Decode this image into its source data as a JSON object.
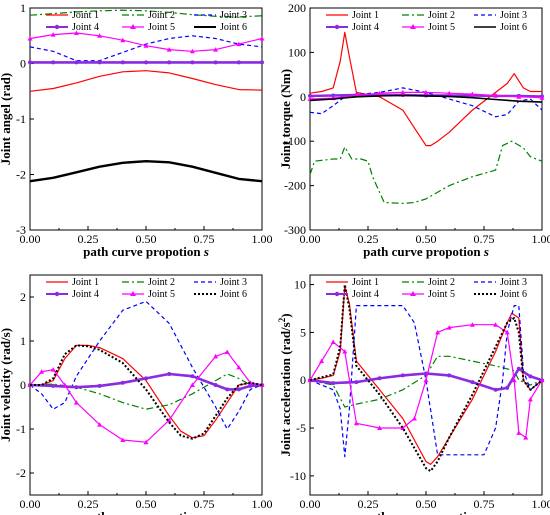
{
  "chart_data": [
    {
      "type": "line",
      "xlabel": "path curve propotion",
      "xlabel_italic": "s",
      "ylabel": "Joint angel (rad)",
      "xlim": [
        0,
        1
      ],
      "ylim": [
        -3,
        1
      ],
      "xticks": [
        "0.00",
        "0.25",
        "0.50",
        "0.75",
        "1.00"
      ],
      "yticks": [
        "-3",
        "-2",
        "-1",
        "0",
        "1"
      ],
      "legend": "top",
      "series": [
        {
          "name": "Joint 1",
          "color": "#ff0000",
          "dash": "",
          "marker": "",
          "width": 1.2,
          "x": [
            0,
            0.1,
            0.2,
            0.3,
            0.4,
            0.5,
            0.6,
            0.7,
            0.8,
            0.9,
            1.0
          ],
          "y": [
            -0.5,
            -0.45,
            -0.35,
            -0.23,
            -0.15,
            -0.13,
            -0.17,
            -0.27,
            -0.38,
            -0.47,
            -0.48
          ]
        },
        {
          "name": "Joint 2",
          "color": "#008000",
          "dash": "7,3,2,3",
          "marker": "",
          "width": 1.2,
          "x": [
            0,
            0.1,
            0.2,
            0.3,
            0.4,
            0.5,
            0.6,
            0.7,
            0.8,
            0.9,
            1.0
          ],
          "y": [
            0.87,
            0.9,
            0.93,
            0.95,
            0.96,
            0.95,
            0.92,
            0.88,
            0.85,
            0.84,
            0.86
          ]
        },
        {
          "name": "Joint 3",
          "color": "#0000ff",
          "dash": "4,3",
          "marker": "",
          "width": 1.2,
          "x": [
            0,
            0.1,
            0.2,
            0.3,
            0.4,
            0.5,
            0.6,
            0.7,
            0.8,
            0.9,
            1.0
          ],
          "y": [
            0.3,
            0.22,
            0.05,
            0.05,
            0.2,
            0.35,
            0.45,
            0.5,
            0.45,
            0.35,
            0.3
          ]
        },
        {
          "name": "Joint 4",
          "color": "#8a2be2",
          "dash": "",
          "marker": "dot",
          "width": 2.6,
          "x": [
            0,
            0.1,
            0.2,
            0.3,
            0.4,
            0.5,
            0.6,
            0.7,
            0.8,
            0.9,
            1.0
          ],
          "y": [
            0.02,
            0.02,
            0.02,
            0.02,
            0.02,
            0.02,
            0.02,
            0.02,
            0.02,
            0.02,
            0.02
          ]
        },
        {
          "name": "Joint 5",
          "color": "#ff00ff",
          "dash": "",
          "marker": "tri",
          "width": 1.2,
          "x": [
            0,
            0.1,
            0.2,
            0.3,
            0.4,
            0.5,
            0.6,
            0.7,
            0.8,
            0.9,
            1.0
          ],
          "y": [
            0.45,
            0.52,
            0.55,
            0.5,
            0.42,
            0.32,
            0.25,
            0.22,
            0.25,
            0.35,
            0.45
          ]
        },
        {
          "name": "Joint 6",
          "color": "#000000",
          "dash": "",
          "marker": "",
          "width": 2.4,
          "x": [
            0,
            0.1,
            0.2,
            0.3,
            0.4,
            0.5,
            0.6,
            0.7,
            0.8,
            0.9,
            1.0
          ],
          "y": [
            -2.12,
            -2.06,
            -1.96,
            -1.86,
            -1.79,
            -1.76,
            -1.78,
            -1.86,
            -1.97,
            -2.08,
            -2.12
          ]
        }
      ]
    },
    {
      "type": "line",
      "xlabel": "path curve propotion",
      "xlabel_italic": "s",
      "ylabel": "Joint torque (Nm)",
      "xlim": [
        0,
        1
      ],
      "ylim": [
        -300,
        200
      ],
      "xticks": [
        "0.00",
        "0.25",
        "0.50",
        "0.75",
        "1.00"
      ],
      "yticks": [
        "-300",
        "-200",
        "-100",
        "0",
        "100",
        "200"
      ],
      "legend": "top",
      "series": [
        {
          "name": "Joint 1",
          "color": "#ff0000",
          "dash": "",
          "marker": "",
          "width": 1.2,
          "x": [
            0,
            0.05,
            0.1,
            0.13,
            0.15,
            0.17,
            0.2,
            0.3,
            0.4,
            0.45,
            0.5,
            0.52,
            0.55,
            0.6,
            0.7,
            0.8,
            0.85,
            0.88,
            0.92,
            0.95,
            1.0
          ],
          "y": [
            8,
            12,
            20,
            80,
            145,
            90,
            10,
            0,
            -30,
            -70,
            -110,
            -110,
            -100,
            -80,
            -30,
            10,
            30,
            52,
            20,
            12,
            12
          ]
        },
        {
          "name": "Joint 2",
          "color": "#008000",
          "dash": "7,3,2,3",
          "marker": "",
          "width": 1.2,
          "x": [
            0,
            0.02,
            0.1,
            0.13,
            0.15,
            0.18,
            0.22,
            0.25,
            0.27,
            0.32,
            0.4,
            0.45,
            0.5,
            0.6,
            0.7,
            0.8,
            0.83,
            0.87,
            0.92,
            0.95,
            1.0
          ],
          "y": [
            -175,
            -145,
            -140,
            -140,
            -113,
            -140,
            -140,
            -145,
            -180,
            -238,
            -240,
            -238,
            -230,
            -200,
            -180,
            -165,
            -110,
            -100,
            -115,
            -135,
            -145
          ]
        },
        {
          "name": "Joint 3",
          "color": "#0000ff",
          "dash": "4,3",
          "marker": "",
          "width": 1.2,
          "x": [
            0,
            0.05,
            0.1,
            0.15,
            0.2,
            0.3,
            0.4,
            0.5,
            0.6,
            0.7,
            0.8,
            0.85,
            0.9,
            0.95,
            1.0
          ],
          "y": [
            -35,
            -38,
            -20,
            0,
            5,
            10,
            20,
            10,
            -5,
            -20,
            -45,
            -40,
            -10,
            -5,
            -30
          ]
        },
        {
          "name": "Joint 4",
          "color": "#8a2be2",
          "dash": "",
          "marker": "dot",
          "width": 2.4,
          "x": [
            0,
            0.1,
            0.2,
            0.3,
            0.4,
            0.5,
            0.6,
            0.7,
            0.8,
            0.9,
            1.0
          ],
          "y": [
            2,
            3,
            4,
            4,
            4,
            3,
            3,
            3,
            2,
            2,
            1
          ]
        },
        {
          "name": "Joint 5",
          "color": "#ff00ff",
          "dash": "",
          "marker": "tri",
          "width": 1.2,
          "x": [
            0,
            0.1,
            0.2,
            0.3,
            0.4,
            0.5,
            0.6,
            0.7,
            0.8,
            0.9,
            1.0
          ],
          "y": [
            -5,
            -3,
            3,
            8,
            10,
            10,
            8,
            6,
            3,
            0,
            -2
          ]
        },
        {
          "name": "Joint 6",
          "color": "#000000",
          "dash": "",
          "marker": "",
          "width": 1.6,
          "x": [
            0,
            0.1,
            0.2,
            0.3,
            0.4,
            0.5,
            0.6,
            0.7,
            0.8,
            0.9,
            1.0
          ],
          "y": [
            -8,
            -5,
            0,
            2,
            3,
            2,
            1,
            -2,
            -6,
            -10,
            -12
          ]
        }
      ]
    },
    {
      "type": "line",
      "xlabel": "path curve propotion",
      "xlabel_italic": "s",
      "ylabel": "Joint velocity (rad/s)",
      "xlim": [
        0,
        1
      ],
      "ylim": [
        -2.5,
        2.5
      ],
      "xticks": [
        "0.00",
        "0.25",
        "0.50",
        "0.75",
        "1.00"
      ],
      "yticks": [
        "-2",
        "-1",
        "0",
        "1",
        "2"
      ],
      "legend": "top",
      "series": [
        {
          "name": "Joint 1",
          "color": "#ff0000",
          "dash": "",
          "marker": "",
          "width": 1.2,
          "x": [
            0,
            0.05,
            0.1,
            0.15,
            0.2,
            0.25,
            0.3,
            0.4,
            0.5,
            0.6,
            0.65,
            0.7,
            0.75,
            0.8,
            0.85,
            0.9,
            0.95,
            1.0
          ],
          "y": [
            0,
            0,
            0.1,
            0.6,
            0.9,
            0.9,
            0.85,
            0.6,
            0.1,
            -0.7,
            -1.05,
            -1.2,
            -1.15,
            -0.8,
            -0.4,
            0,
            0.05,
            0
          ]
        },
        {
          "name": "Joint 2",
          "color": "#008000",
          "dash": "7,3,2,3",
          "marker": "",
          "width": 1.2,
          "x": [
            0,
            0.1,
            0.2,
            0.3,
            0.4,
            0.5,
            0.6,
            0.7,
            0.8,
            0.85,
            0.9,
            0.95,
            1.0
          ],
          "y": [
            0,
            0.02,
            -0.05,
            -0.2,
            -0.4,
            -0.55,
            -0.45,
            -0.2,
            0.1,
            0.25,
            0.15,
            0,
            0
          ]
        },
        {
          "name": "Joint 3",
          "color": "#0000ff",
          "dash": "4,3",
          "marker": "",
          "width": 1.2,
          "x": [
            0,
            0.05,
            0.1,
            0.15,
            0.2,
            0.3,
            0.4,
            0.5,
            0.6,
            0.7,
            0.8,
            0.85,
            0.9,
            0.95,
            1.0
          ],
          "y": [
            0,
            -0.2,
            -0.55,
            -0.4,
            0.2,
            1.0,
            1.7,
            1.9,
            1.4,
            0.4,
            -0.5,
            -1.0,
            -0.6,
            -0.1,
            0
          ]
        },
        {
          "name": "Joint 4",
          "color": "#8a2be2",
          "dash": "",
          "marker": "dot",
          "width": 2.6,
          "x": [
            0,
            0.1,
            0.2,
            0.3,
            0.4,
            0.5,
            0.6,
            0.7,
            0.8,
            0.85,
            0.9,
            0.95,
            1.0
          ],
          "y": [
            0,
            -0.02,
            -0.05,
            -0.02,
            0.05,
            0.15,
            0.25,
            0.2,
            0,
            -0.1,
            -0.1,
            -0.02,
            0
          ]
        },
        {
          "name": "Joint 5",
          "color": "#ff00ff",
          "dash": "",
          "marker": "tri",
          "width": 1.2,
          "x": [
            0,
            0.05,
            0.1,
            0.15,
            0.2,
            0.3,
            0.4,
            0.5,
            0.6,
            0.7,
            0.8,
            0.85,
            0.9,
            0.95,
            1.0
          ],
          "y": [
            0,
            0.3,
            0.35,
            0.0,
            -0.4,
            -0.9,
            -1.25,
            -1.3,
            -0.8,
            0,
            0.65,
            0.75,
            0.4,
            0.05,
            0
          ]
        },
        {
          "name": "Joint 6",
          "color": "#000000",
          "dash": "2,2",
          "marker": "",
          "width": 2.0,
          "x": [
            0,
            0.05,
            0.1,
            0.15,
            0.2,
            0.25,
            0.3,
            0.4,
            0.5,
            0.6,
            0.65,
            0.7,
            0.75,
            0.8,
            0.85,
            0.9,
            0.95,
            1.0
          ],
          "y": [
            0,
            0,
            0.15,
            0.7,
            0.9,
            0.88,
            0.8,
            0.5,
            -0.1,
            -0.85,
            -1.15,
            -1.22,
            -1.1,
            -0.7,
            -0.3,
            0,
            0.05,
            0
          ]
        }
      ]
    },
    {
      "type": "line",
      "xlabel": "path curve propotion",
      "xlabel_italic": "s",
      "ylabel": "Joint acceleration (rad/s",
      "ylabel_sup": "2",
      "ylabel_end": ")",
      "xlim": [
        0,
        1
      ],
      "ylim": [
        -12,
        11
      ],
      "xticks": [
        "0.00",
        "0.25",
        "0.50",
        "0.75",
        "1.00"
      ],
      "yticks": [
        "-10",
        "-5",
        "0",
        "5",
        "10"
      ],
      "legend": "top",
      "series": [
        {
          "name": "Joint 1",
          "color": "#ff0000",
          "dash": "",
          "marker": "",
          "width": 1.2,
          "x": [
            0,
            0.05,
            0.1,
            0.13,
            0.15,
            0.17,
            0.2,
            0.3,
            0.4,
            0.5,
            0.52,
            0.55,
            0.6,
            0.7,
            0.8,
            0.85,
            0.87,
            0.9,
            0.92,
            0.95,
            1.0
          ],
          "y": [
            0,
            0.2,
            0.5,
            3,
            9.8,
            8,
            2,
            -1,
            -4,
            -8.5,
            -8.8,
            -8,
            -6,
            -2,
            3,
            6,
            7,
            6.5,
            0,
            -1,
            0
          ]
        },
        {
          "name": "Joint 2",
          "color": "#008000",
          "dash": "7,3,2,3",
          "marker": "",
          "width": 1.2,
          "x": [
            0,
            0.1,
            0.15,
            0.2,
            0.3,
            0.4,
            0.5,
            0.55,
            0.6,
            0.7,
            0.8,
            0.88,
            0.9,
            0.95,
            1.0
          ],
          "y": [
            0,
            -0.5,
            -2.8,
            -2.5,
            -2.0,
            -1.0,
            0.5,
            2.5,
            2.5,
            2.0,
            1.5,
            1.0,
            0,
            -0.5,
            0
          ]
        },
        {
          "name": "Joint 3",
          "color": "#0000ff",
          "dash": "4,3",
          "marker": "",
          "width": 1.2,
          "x": [
            0,
            0.1,
            0.13,
            0.15,
            0.17,
            0.2,
            0.3,
            0.4,
            0.45,
            0.5,
            0.55,
            0.6,
            0.7,
            0.75,
            0.8,
            0.83,
            0.85,
            0.88,
            0.9,
            0.92,
            0.95,
            1.0
          ],
          "y": [
            0,
            -1,
            -3,
            -8,
            -3,
            7.8,
            7.8,
            7.8,
            6,
            0,
            -7.8,
            -7.8,
            -7.8,
            -7.8,
            -5,
            0,
            5,
            7.8,
            7.8,
            1,
            -1,
            0
          ]
        },
        {
          "name": "Joint 4",
          "color": "#8a2be2",
          "dash": "",
          "marker": "dot",
          "width": 2.6,
          "x": [
            0,
            0.1,
            0.2,
            0.3,
            0.4,
            0.5,
            0.6,
            0.7,
            0.8,
            0.85,
            0.9,
            0.95,
            1.0
          ],
          "y": [
            0,
            -0.3,
            -0.2,
            0.2,
            0.5,
            0.7,
            0.5,
            -0.2,
            -1.0,
            -0.8,
            1.2,
            0.4,
            0
          ]
        },
        {
          "name": "Joint 5",
          "color": "#ff00ff",
          "dash": "",
          "marker": "tri",
          "width": 1.2,
          "x": [
            0,
            0.05,
            0.1,
            0.15,
            0.2,
            0.3,
            0.4,
            0.45,
            0.5,
            0.55,
            0.6,
            0.7,
            0.8,
            0.85,
            0.88,
            0.9,
            0.93,
            0.95,
            1.0
          ],
          "y": [
            0,
            2,
            4,
            3,
            -4.5,
            -5,
            -5,
            -4,
            0,
            5,
            5.5,
            5.8,
            5.8,
            5,
            0,
            -5.5,
            -6,
            -2,
            0
          ]
        },
        {
          "name": "Joint 6",
          "color": "#000000",
          "dash": "2,2",
          "marker": "",
          "width": 2.0,
          "x": [
            0,
            0.05,
            0.1,
            0.13,
            0.15,
            0.17,
            0.2,
            0.3,
            0.4,
            0.5,
            0.52,
            0.55,
            0.6,
            0.7,
            0.8,
            0.85,
            0.88,
            0.9,
            0.92,
            0.95,
            1.0
          ],
          "y": [
            0,
            0.3,
            0.6,
            3.5,
            10,
            7.5,
            1.5,
            -1.5,
            -5,
            -9.2,
            -9.5,
            -8.5,
            -6,
            -1.5,
            3.5,
            6,
            6.5,
            5,
            0,
            -1,
            0
          ]
        }
      ]
    }
  ]
}
